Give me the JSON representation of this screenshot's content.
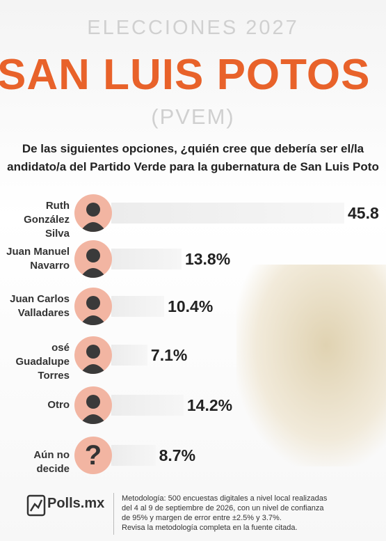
{
  "chart_data": {
    "type": "bar",
    "header": "ELECCIONES 2027",
    "title": "SAN LUIS POTOS",
    "subtitle": "(PVEM)",
    "question": [
      "De las siguientes opciones, ¿quién cree que debería ser el/la",
      "andidato/a del Partido Verde para la gubernatura de San Luis Poto"
    ],
    "categories": [
      "Ruth\nGonzález Silva",
      "Juan Manuel\nNavarro",
      "Juan Carlos\nValladares",
      "osé Guadalupe\nTorres",
      "Otro",
      "Aún no decide"
    ],
    "values": [
      45.8,
      13.8,
      10.4,
      7.1,
      14.2,
      8.7
    ],
    "value_labels": [
      "45.8",
      "13.8%",
      "10.4%",
      "7.1%",
      "14.2%",
      "8.7%"
    ],
    "color": "#ececec",
    "unknown_icon": "?",
    "source_logo": "Polls.mx",
    "methodology": [
      "Metodología: 500 encuestas digitales a nivel local realizadas",
      "del 4 al 9 de septiembre de 2026, con un nivel de confianza",
      "de 95% y margen de error entre ±2.5% y 3.7%.",
      "Revisa la metodología completa en la fuente citada."
    ]
  }
}
